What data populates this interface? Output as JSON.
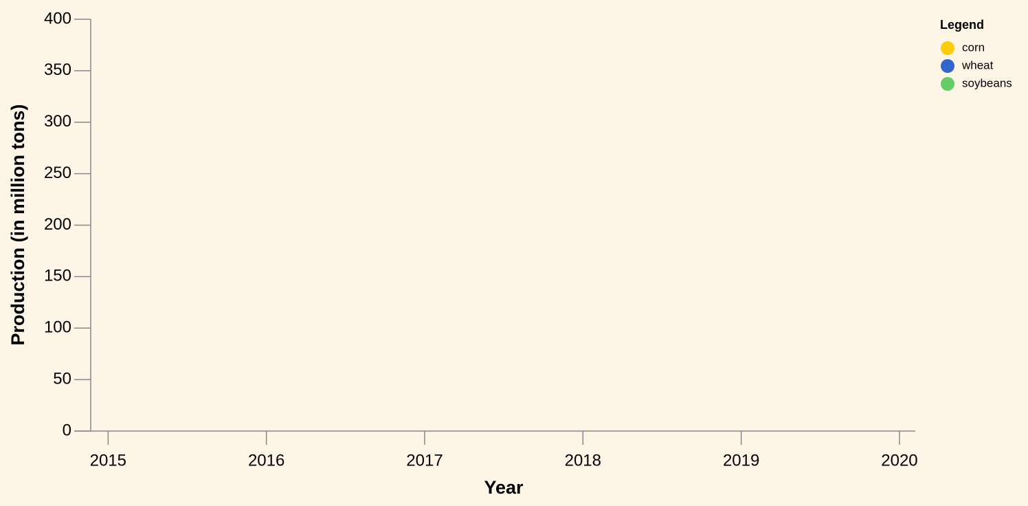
{
  "chart_data": {
    "type": "line",
    "x_label": "Year",
    "y_label": "Production (in million tons)",
    "legend_title": "Legend",
    "legend": "top-right",
    "x": [
      2015,
      2016,
      2017,
      2018,
      2019,
      2020
    ],
    "series": [
      {
        "name": "corn",
        "color": "#fccc0a",
        "values": [
          null,
          null,
          null,
          null,
          null,
          null
        ]
      },
      {
        "name": "wheat",
        "color": "#3366cc",
        "values": [
          null,
          null,
          null,
          null,
          null,
          null
        ]
      },
      {
        "name": "soybeans",
        "color": "#66cc66",
        "values": [
          null,
          null,
          null,
          null,
          null,
          null
        ]
      }
    ],
    "xlim": [
      2014.89,
      2020.1
    ],
    "xticks": [
      2015,
      2016,
      2017,
      2018,
      2019,
      2020
    ],
    "ylim": [
      0,
      400
    ],
    "yticks": [
      0,
      50,
      100,
      150,
      200,
      250,
      300,
      350,
      400
    ],
    "grid": false
  }
}
